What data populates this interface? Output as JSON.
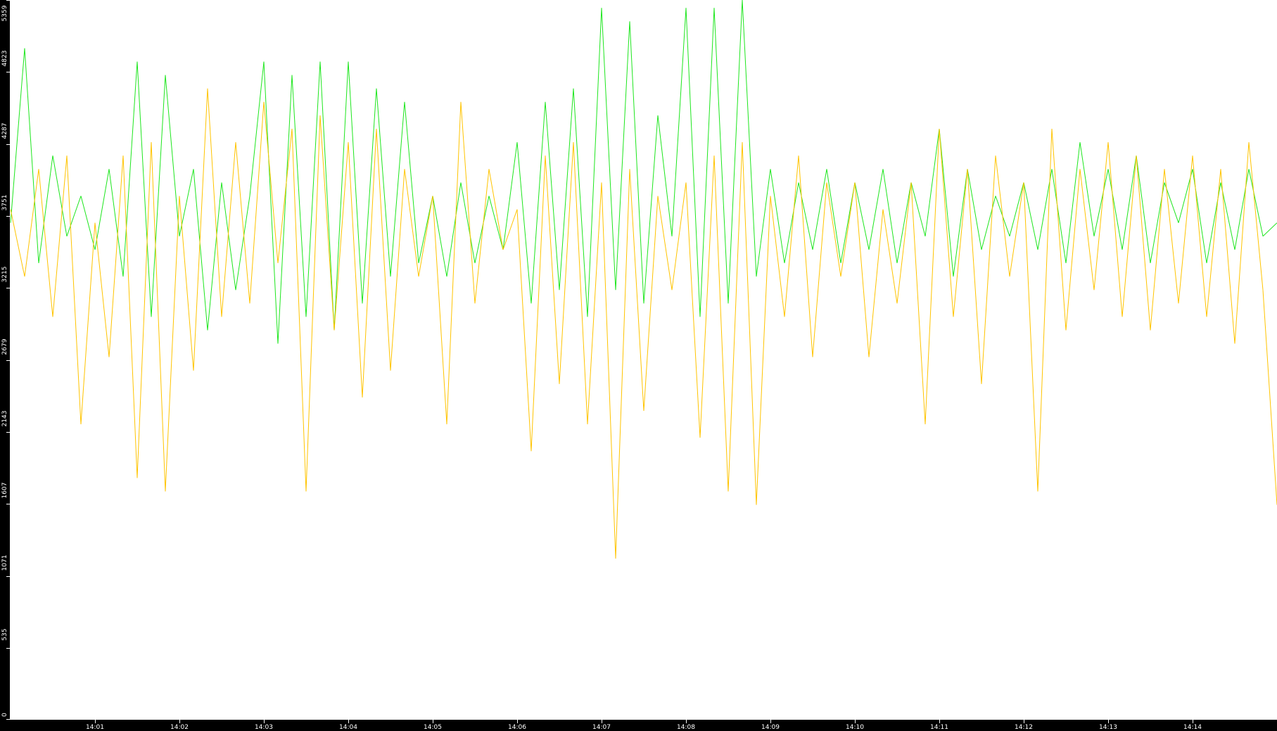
{
  "chart_data": {
    "type": "line",
    "x_start": "14:00:00",
    "x_end": "14:15:00",
    "x_step_seconds": 10,
    "ylim": [
      0,
      5359
    ],
    "y_ticks": [
      "0",
      "535",
      "1071",
      "1607",
      "2143",
      "2679",
      "3215",
      "3751",
      "4287",
      "4823",
      "5359"
    ],
    "x_ticks": [
      "14:01",
      "14:02",
      "14:03",
      "14:04",
      "14:05",
      "14:06",
      "14:07",
      "14:08",
      "14:09",
      "14:10",
      "14:11",
      "14:12",
      "14:13",
      "14:14"
    ],
    "grid": false,
    "series": [
      {
        "color": "#1ee61e",
        "values": [
          3700,
          5000,
          3400,
          4200,
          3600,
          3900,
          3500,
          4100,
          3300,
          4900,
          3000,
          4800,
          3600,
          4100,
          2900,
          4000,
          3200,
          3900,
          4900,
          2800,
          4800,
          3000,
          4900,
          2900,
          4900,
          3100,
          4700,
          3300,
          4600,
          3400,
          3900,
          3300,
          4000,
          3400,
          3900,
          3500,
          4300,
          3100,
          4600,
          3200,
          4700,
          3000,
          5300,
          3200,
          5200,
          3100,
          4500,
          3600,
          5300,
          3000,
          5300,
          3100,
          5359,
          3300,
          4100,
          3400,
          4000,
          3500,
          4100,
          3400,
          4000,
          3500,
          4100,
          3400,
          4000,
          3600,
          4400,
          3300,
          4100,
          3500,
          3900,
          3600,
          4000,
          3500,
          4100,
          3400,
          4300,
          3600,
          4100,
          3500,
          4200,
          3400,
          4000,
          3700,
          4100,
          3400,
          4000,
          3500,
          4100,
          3600,
          3700
        ]
      },
      {
        "color": "#ffc400",
        "values": [
          3800,
          3300,
          4100,
          3000,
          4200,
          2200,
          3700,
          2700,
          4200,
          1800,
          4300,
          1700,
          3900,
          2600,
          4700,
          3000,
          4300,
          3100,
          4600,
          3400,
          4400,
          1700,
          4500,
          2900,
          4300,
          2400,
          4400,
          2600,
          4100,
          3300,
          3900,
          2200,
          4600,
          3100,
          4100,
          3500,
          3800,
          2000,
          4200,
          2500,
          4300,
          2200,
          4000,
          1200,
          4100,
          2300,
          3900,
          3200,
          4000,
          2100,
          4200,
          1700,
          4300,
          1600,
          3900,
          3000,
          4200,
          2700,
          4000,
          3300,
          4000,
          2700,
          3800,
          3100,
          4000,
          2200,
          4400,
          3000,
          4100,
          2500,
          4200,
          3300,
          4000,
          1700,
          4400,
          2900,
          4100,
          3200,
          4300,
          3000,
          4200,
          2900,
          4100,
          3100,
          4200,
          3000,
          4100,
          2800,
          4300,
          3200,
          1600
        ]
      }
    ]
  }
}
